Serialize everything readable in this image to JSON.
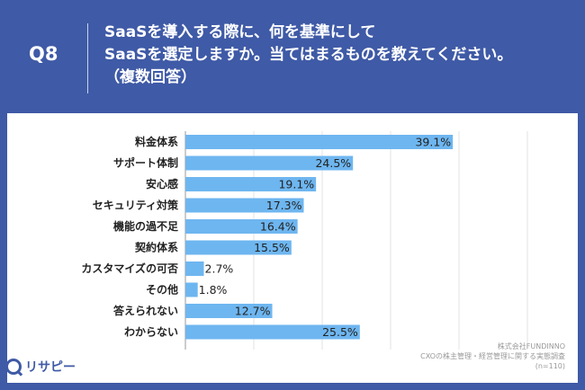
{
  "header": {
    "badge": "Q8",
    "question_lines": [
      "SaaSを導入する際に、何を基準にして",
      "SaaSを選定しますか。当てはまるものを教えてください。",
      "（複数回答）"
    ]
  },
  "footer": {
    "source_lines": [
      "株式会社FUNDINNO",
      "CXOの株主管理・経営管理に関する実態調査",
      "(n=110)"
    ],
    "logo_text": "リサピー"
  },
  "colors": {
    "brand": "#3f5aa6",
    "bar": "#6eb6f0",
    "background": "#ffffff"
  },
  "chart_data": {
    "type": "bar",
    "orientation": "horizontal",
    "categories": [
      "料金体系",
      "サポート体制",
      "安心感",
      "セキュリティ対策",
      "機能の過不足",
      "契約体系",
      "カスタマイズの可否",
      "その他",
      "答えられない",
      "わからない"
    ],
    "values": [
      39.1,
      24.5,
      19.1,
      17.3,
      16.4,
      15.5,
      2.7,
      1.8,
      12.7,
      25.5
    ],
    "value_suffix": "%",
    "xlim": [
      0,
      50
    ],
    "grid": true
  }
}
